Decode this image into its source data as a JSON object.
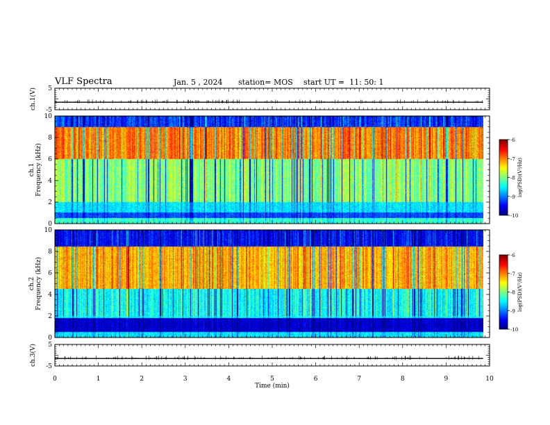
{
  "header": {
    "title": "VLF Spectra",
    "date": "Jan. 5 , 2024",
    "station": "station= MOS",
    "start": "start UT =  11: 50: 1"
  },
  "chart_data": [
    {
      "type": "line",
      "panel": "ch1-waveform",
      "ylabel": "ch.1(V)",
      "yticks": [
        "5",
        "-5"
      ],
      "ylim": [
        -5,
        5
      ],
      "xlim": [
        0,
        10
      ],
      "series": [
        {
          "values": [
            -1.5,
            -1.5
          ]
        }
      ]
    },
    {
      "type": "heatmap",
      "panel": "ch1-spectrogram",
      "ylabel": "ch.1\nFrequency (kHz)",
      "ylabel_line1": "ch.1",
      "ylabel_line2": "Frequency (kHz)",
      "yticks": [
        "10",
        "8",
        "6",
        "4",
        "2",
        "0"
      ],
      "ylim": [
        0,
        10
      ],
      "xlim": [
        0,
        9.85
      ],
      "bands_khz": [
        {
          "range": [
            0,
            0.5
          ],
          "level": -8.3
        },
        {
          "range": [
            0.5,
            1.0
          ],
          "level": -9.2
        },
        {
          "range": [
            1.0,
            2.0
          ],
          "level": -8.6
        },
        {
          "range": [
            2.0,
            6.0
          ],
          "level": -8.0
        },
        {
          "range": [
            6.0,
            9.0
          ],
          "level": -7.0
        },
        {
          "range": [
            9.0,
            10.0
          ],
          "level": -9.3
        }
      ],
      "colorbar": {
        "label": "log(PSD)(V²/Hz)",
        "ticks": [
          "-6",
          "-7",
          "-8",
          "-9",
          "-10"
        ],
        "range": [
          -10,
          -6
        ]
      }
    },
    {
      "type": "heatmap",
      "panel": "ch2-spectrogram",
      "ylabel": "ch.2\nFrequency (kHz)",
      "ylabel_line1": "ch.2",
      "ylabel_line2": "Frequency (kHz)",
      "yticks": [
        "10",
        "8",
        "6",
        "4",
        "2",
        "0"
      ],
      "ylim": [
        0,
        10
      ],
      "xlim": [
        0,
        9.85
      ],
      "bands_khz": [
        {
          "range": [
            0,
            0.5
          ],
          "level": -8.6
        },
        {
          "range": [
            0.5,
            1.8
          ],
          "level": -9.7
        },
        {
          "range": [
            1.8,
            4.5
          ],
          "level": -8.5
        },
        {
          "range": [
            4.5,
            8.5
          ],
          "level": -7.2
        },
        {
          "range": [
            8.5,
            10.0
          ],
          "level": -9.5
        }
      ],
      "colorbar": {
        "label": "log(PSD)(V²/Hz)",
        "ticks": [
          "-6",
          "-7",
          "-8",
          "-9",
          "-10"
        ],
        "range": [
          -10,
          -6
        ]
      }
    },
    {
      "type": "line",
      "panel": "ch3-waveform",
      "ylabel": "ch.3(V)",
      "yticks": [
        "5",
        "-5"
      ],
      "ylim": [
        -5,
        5
      ],
      "xlim": [
        0,
        10
      ],
      "series": [
        {
          "values": [
            -1.5,
            -1.5
          ]
        }
      ]
    }
  ],
  "xaxis": {
    "label": "Time (min)",
    "ticks": [
      "0",
      "1",
      "2",
      "3",
      "4",
      "5",
      "6",
      "7",
      "8",
      "9",
      "10"
    ],
    "range": [
      0,
      10
    ]
  }
}
